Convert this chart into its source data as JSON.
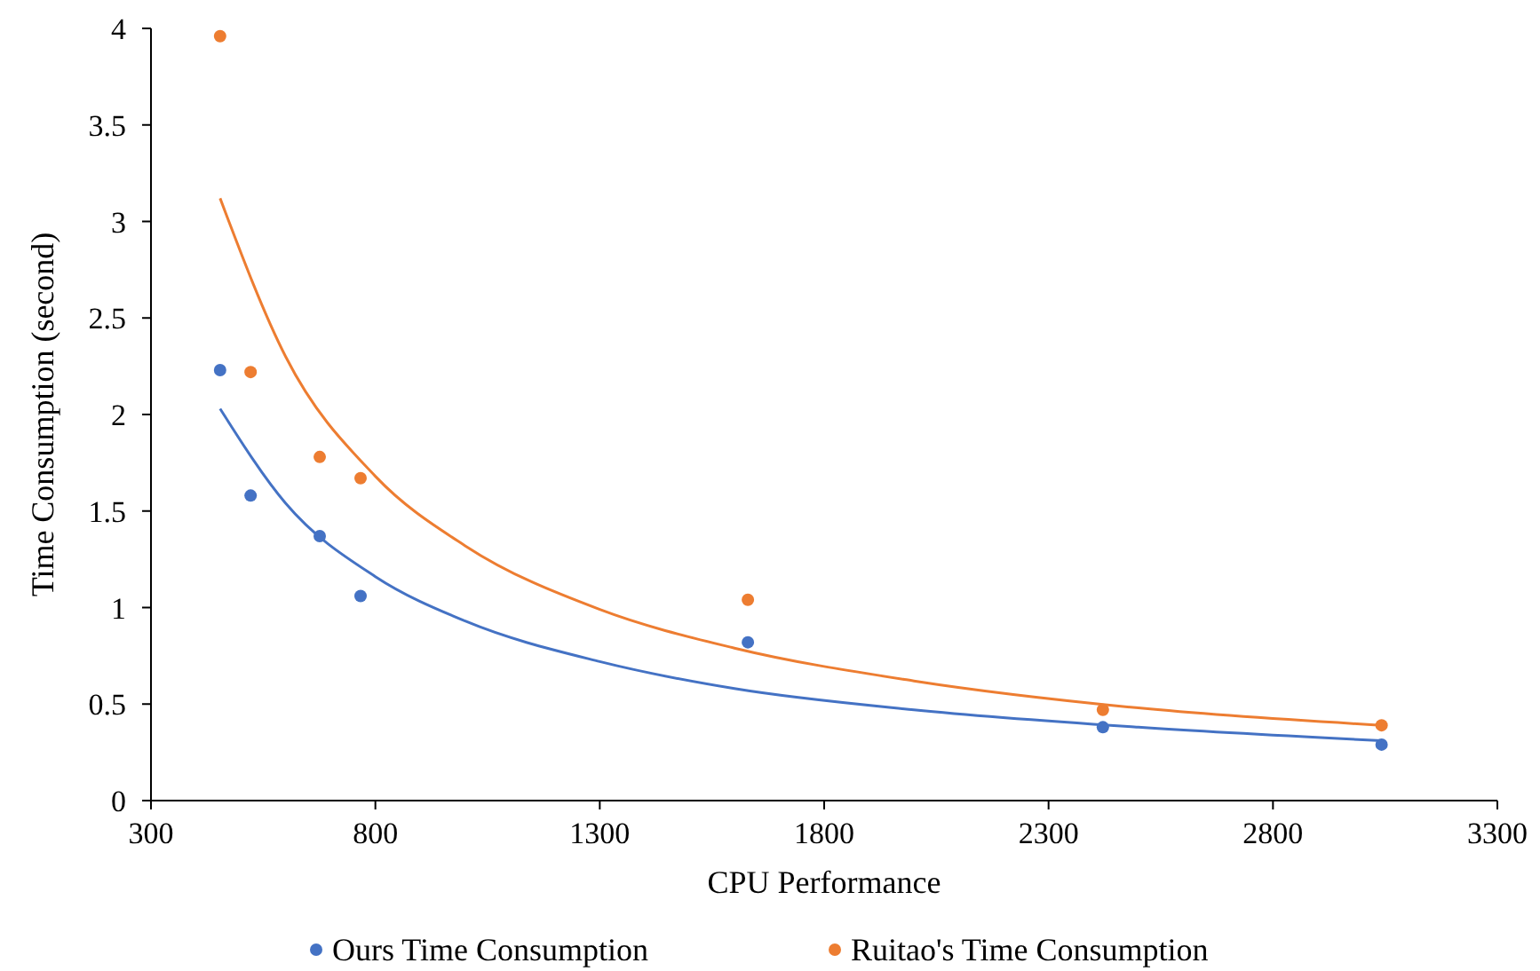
{
  "chart_data": {
    "type": "scatter",
    "xlabel": "CPU Performance",
    "ylabel": "Time Consumption (second)",
    "xlim": [
      300,
      3300
    ],
    "xticks": [
      300,
      800,
      1300,
      1800,
      2300,
      2800,
      3300
    ],
    "ylim": [
      0,
      4
    ],
    "yticks": [
      0,
      0.5,
      1,
      1.5,
      2,
      2.5,
      3,
      3.5,
      4
    ],
    "grid": false,
    "legend": "bottom",
    "marker": "circle",
    "series": [
      {
        "name": "Ours Time  Consumption",
        "color": "#4472c4",
        "x": [
          454,
          522,
          676,
          767,
          1630,
          2421,
          3042
        ],
        "values": [
          2.23,
          1.58,
          1.37,
          1.06,
          0.82,
          0.38,
          0.29
        ]
      },
      {
        "name": "Ruitao's Time  Consumption",
        "color": "#ed7d31",
        "x": [
          454,
          522,
          676,
          767,
          1630,
          2421,
          3042
        ],
        "values": [
          3.96,
          2.22,
          1.78,
          1.67,
          1.04,
          0.47,
          0.39
        ]
      },
      {
        "type": "line",
        "color": "#4472c4",
        "marker": "none",
        "x": [
          454,
          600,
          800,
          1000,
          1300,
          1600,
          2000,
          2500,
          3042
        ],
        "values": [
          2.03,
          1.54,
          1.16,
          0.93,
          0.72,
          0.58,
          0.47,
          0.38,
          0.31
        ]
      },
      {
        "type": "line",
        "color": "#ed7d31",
        "marker": "none",
        "x": [
          454,
          600,
          800,
          1000,
          1300,
          1600,
          2000,
          2500,
          3042
        ],
        "values": [
          3.12,
          2.3,
          1.68,
          1.32,
          0.99,
          0.79,
          0.62,
          0.48,
          0.39
        ]
      }
    ]
  }
}
